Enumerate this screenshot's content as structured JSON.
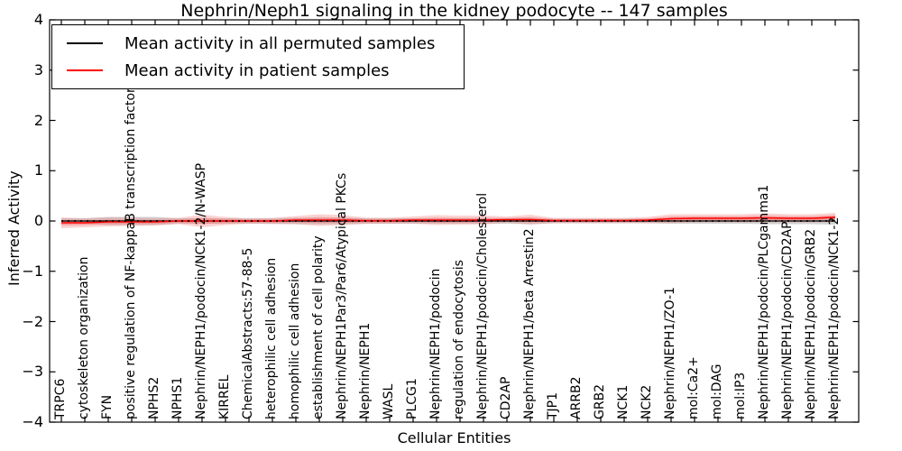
{
  "figure": {
    "background": "#ffffff"
  },
  "chart_data": {
    "type": "line",
    "title": "Nephrin/Neph1 signaling in the kidney podocyte -- 147 samples",
    "xlabel": "Cellular Entities",
    "ylabel": "Inferred Activity",
    "ylim": [
      -4,
      4
    ],
    "ytick_values": [
      -4,
      -3,
      -2,
      -1,
      0,
      1,
      2,
      3,
      4
    ],
    "ytick_labels": [
      "−4",
      "−3",
      "−2",
      "−1",
      "0",
      "1",
      "2",
      "3",
      "4"
    ],
    "grid": false,
    "legend_position": "upper left",
    "zero_reference_line": {
      "style": "dotted",
      "color": "#000000",
      "value": 0
    },
    "categories": [
      "TRPC6",
      "cytoskeleton organization",
      "FYN",
      "positive regulation of NF-kappaB transcription factor a",
      "NPHS2",
      "NPHS1",
      "Nephrin/NEPH1/podocin/NCK1-2/N-WASP",
      "KIRREL",
      "ChemicalAbstracts:57-88-5",
      "heterophilic cell adhesion",
      "homophilic cell adhesion",
      "establishment of cell polarity",
      "Nephrin/NEPH1Par3/Par6/Atypical PKCs",
      "Nephrin/NEPH1",
      "WASL",
      "PLCG1",
      "Nephrin/NEPH1/podocin",
      "regulation of endocytosis",
      "Nephrin/NEPH1/podocin/Cholesterol",
      "CD2AP",
      "Nephrin/NEPH1/beta Arrestin2",
      "TJP1",
      "ARRB2",
      "GRB2",
      "NCK1",
      "NCK2",
      "Nephrin/NEPH1/ZO-1",
      "mol:Ca2+",
      "mol:DAG",
      "mol:IP3",
      "Nephrin/NEPH1/podocin/PLCgamma1",
      "Nephrin/NEPH1/podocin/CD2AP",
      "Nephrin/NEPH1/podocin/GRB2",
      "Nephrin/NEPH1/podocin/NCK1-2"
    ],
    "series": [
      {
        "name": "Mean activity in all permuted samples",
        "color": "#000000",
        "band_color": "#999999",
        "values": [
          0,
          0,
          0,
          0,
          0,
          0,
          0,
          0,
          0,
          0,
          0,
          0,
          0,
          0,
          0,
          0,
          0,
          0,
          0,
          0,
          0,
          0,
          0,
          0,
          0,
          0,
          0,
          0,
          0,
          0,
          0,
          0,
          0,
          0
        ],
        "std": [
          0.054,
          0.054,
          0.08,
          0.08,
          0.08,
          0.054,
          0.054,
          0.054,
          0.054,
          0.054,
          0.063,
          0.063,
          0.063,
          0.054,
          0.054,
          0.054,
          0.054,
          0.054,
          0.054,
          0.054,
          0.063,
          0.045,
          0.045,
          0.045,
          0.045,
          0.045,
          0.054,
          0.054,
          0.054,
          0.054,
          0.063,
          0.063,
          0.063,
          0.072
        ]
      },
      {
        "name": "Mean activity in patient samples",
        "color": "#ff0000",
        "band_color": "#f08080",
        "values": [
          -0.036,
          -0.036,
          -0.018,
          -0.018,
          -0.018,
          0,
          0,
          0,
          0,
          0,
          0.018,
          0.018,
          0.018,
          0.005,
          0.005,
          0.018,
          0.018,
          0.018,
          0.018,
          0.027,
          0.027,
          0.009,
          0.009,
          0.009,
          0.009,
          0.018,
          0.045,
          0.054,
          0.054,
          0.054,
          0.063,
          0.054,
          0.054,
          0.072
        ],
        "std": [
          0.108,
          0.09,
          0.09,
          0.08,
          0.072,
          0.063,
          0.125,
          0.08,
          0.054,
          0.063,
          0.08,
          0.117,
          0.099,
          0.063,
          0.063,
          0.072,
          0.099,
          0.09,
          0.09,
          0.063,
          0.099,
          0.054,
          0.054,
          0.054,
          0.054,
          0.063,
          0.09,
          0.08,
          0.08,
          0.08,
          0.09,
          0.08,
          0.08,
          0.09
        ]
      }
    ]
  }
}
